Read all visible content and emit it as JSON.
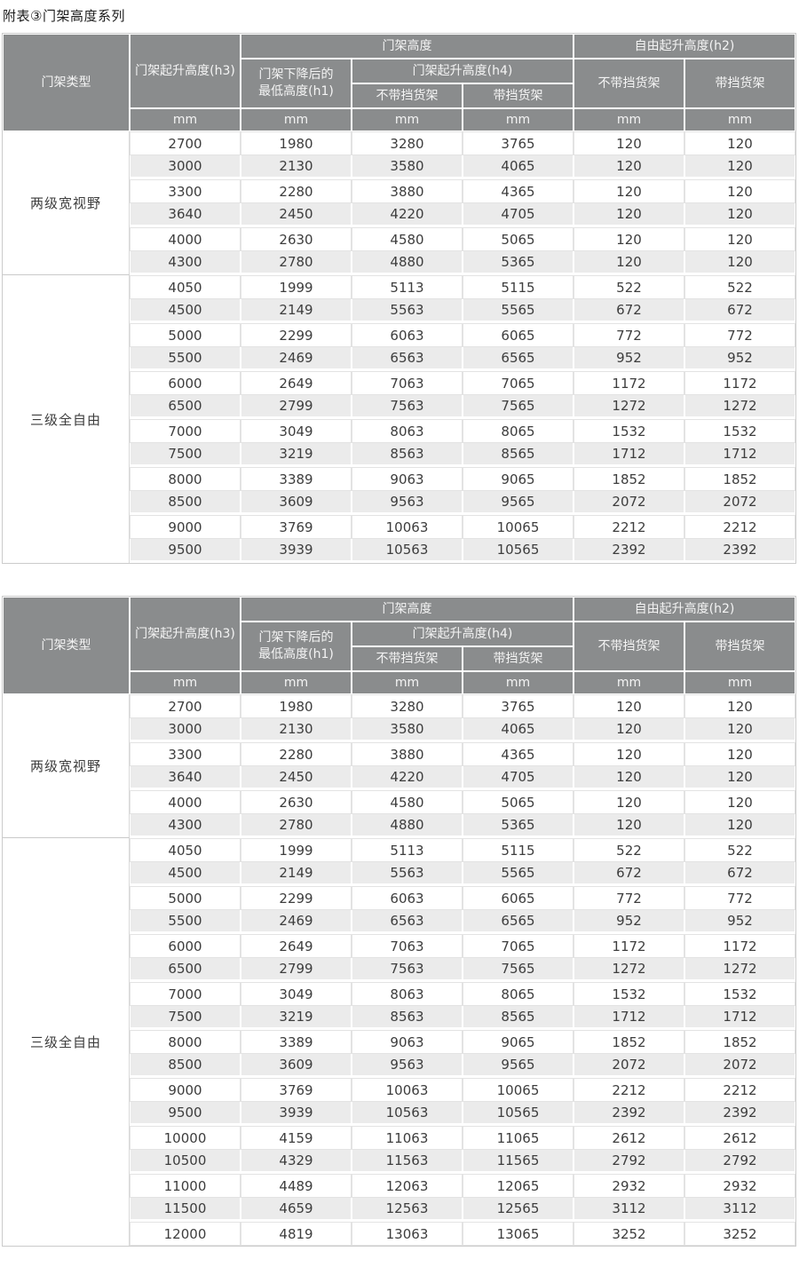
{
  "page": {
    "title": "附表③门架高度系列"
  },
  "colors": {
    "header_bg": "#8a8c8d",
    "header_text": "#f4f4f4",
    "row_bg": "#ffffff",
    "row_alt_bg": "#ebebeb",
    "cell_text": "#3d3d3d",
    "outer_border": "#cbcbcb"
  },
  "table_header": {
    "mast_type": "门架类型",
    "lift_height_h3": "门架起升高度(h3)",
    "mast_height_group": "门架高度",
    "lowered_height_line1": "门架下降后的",
    "lowered_height_line2": "最低高度(h1)",
    "lift_height_h4": "门架起升高度(h4)",
    "without_load_backrest": "不带挡货架",
    "with_load_backrest": "带挡货架",
    "free_lift_group": "自由起升高度(h2)",
    "unit": "mm"
  },
  "tables": [
    {
      "groups": [
        {
          "label": "两级宽视野",
          "rows": [
            [
              2700,
              1980,
              3280,
              3765,
              120,
              120
            ],
            [
              3000,
              2130,
              3580,
              4065,
              120,
              120
            ],
            [
              3300,
              2280,
              3880,
              4365,
              120,
              120
            ],
            [
              3640,
              2450,
              4220,
              4705,
              120,
              120
            ],
            [
              4000,
              2630,
              4580,
              5065,
              120,
              120
            ],
            [
              4300,
              2780,
              4880,
              5365,
              120,
              120
            ]
          ]
        },
        {
          "label": "三级全自由",
          "rows": [
            [
              4050,
              1999,
              5113,
              5115,
              522,
              522
            ],
            [
              4500,
              2149,
              5563,
              5565,
              672,
              672
            ],
            [
              5000,
              2299,
              6063,
              6065,
              772,
              772
            ],
            [
              5500,
              2469,
              6563,
              6565,
              952,
              952
            ],
            [
              6000,
              2649,
              7063,
              7065,
              1172,
              1172
            ],
            [
              6500,
              2799,
              7563,
              7565,
              1272,
              1272
            ],
            [
              7000,
              3049,
              8063,
              8065,
              1532,
              1532
            ],
            [
              7500,
              3219,
              8563,
              8565,
              1712,
              1712
            ],
            [
              8000,
              3389,
              9063,
              9065,
              1852,
              1852
            ],
            [
              8500,
              3609,
              9563,
              9565,
              2072,
              2072
            ],
            [
              9000,
              3769,
              10063,
              10065,
              2212,
              2212
            ],
            [
              9500,
              3939,
              10563,
              10565,
              2392,
              2392
            ]
          ]
        }
      ]
    },
    {
      "groups": [
        {
          "label": "两级宽视野",
          "rows": [
            [
              2700,
              1980,
              3280,
              3765,
              120,
              120
            ],
            [
              3000,
              2130,
              3580,
              4065,
              120,
              120
            ],
            [
              3300,
              2280,
              3880,
              4365,
              120,
              120
            ],
            [
              3640,
              2450,
              4220,
              4705,
              120,
              120
            ],
            [
              4000,
              2630,
              4580,
              5065,
              120,
              120
            ],
            [
              4300,
              2780,
              4880,
              5365,
              120,
              120
            ]
          ]
        },
        {
          "label": "三级全自由",
          "rows": [
            [
              4050,
              1999,
              5113,
              5115,
              522,
              522
            ],
            [
              4500,
              2149,
              5563,
              5565,
              672,
              672
            ],
            [
              5000,
              2299,
              6063,
              6065,
              772,
              772
            ],
            [
              5500,
              2469,
              6563,
              6565,
              952,
              952
            ],
            [
              6000,
              2649,
              7063,
              7065,
              1172,
              1172
            ],
            [
              6500,
              2799,
              7563,
              7565,
              1272,
              1272
            ],
            [
              7000,
              3049,
              8063,
              8065,
              1532,
              1532
            ],
            [
              7500,
              3219,
              8563,
              8565,
              1712,
              1712
            ],
            [
              8000,
              3389,
              9063,
              9065,
              1852,
              1852
            ],
            [
              8500,
              3609,
              9563,
              9565,
              2072,
              2072
            ],
            [
              9000,
              3769,
              10063,
              10065,
              2212,
              2212
            ],
            [
              9500,
              3939,
              10563,
              10565,
              2392,
              2392
            ],
            [
              10000,
              4159,
              11063,
              11065,
              2612,
              2612
            ],
            [
              10500,
              4329,
              11563,
              11565,
              2792,
              2792
            ],
            [
              11000,
              4489,
              12063,
              12065,
              2932,
              2932
            ],
            [
              11500,
              4659,
              12563,
              12565,
              3112,
              3112
            ],
            [
              12000,
              4819,
              13063,
              13065,
              3252,
              3252
            ]
          ]
        }
      ]
    }
  ]
}
